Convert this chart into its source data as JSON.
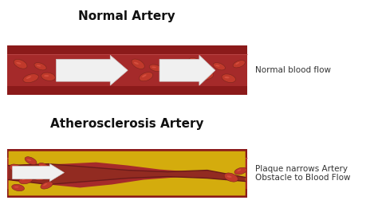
{
  "bg_color": "#ffffff",
  "title1": "Normal Artery",
  "title2": "Atherosclerosis Artery",
  "label1": "Normal blood flow",
  "label2": "Plaque narrows Artery\nObstacle to Blood Flow",
  "wall_color": "#C0392B",
  "inner_color": "#A93226",
  "blood_color": "#922B21",
  "cell_color": "#C0392B",
  "cell_edge": "#7B241C",
  "cell_highlight": "#E74C3C",
  "plaque_color": "#D4AC0D",
  "plaque_outline": "#B7950B",
  "narrow_channel": "#8B1A1A",
  "arrow_color": "#F0F0F0",
  "title_color": "#111111",
  "label_color": "#333333",
  "title_fs": 11,
  "label_fs": 7.5
}
